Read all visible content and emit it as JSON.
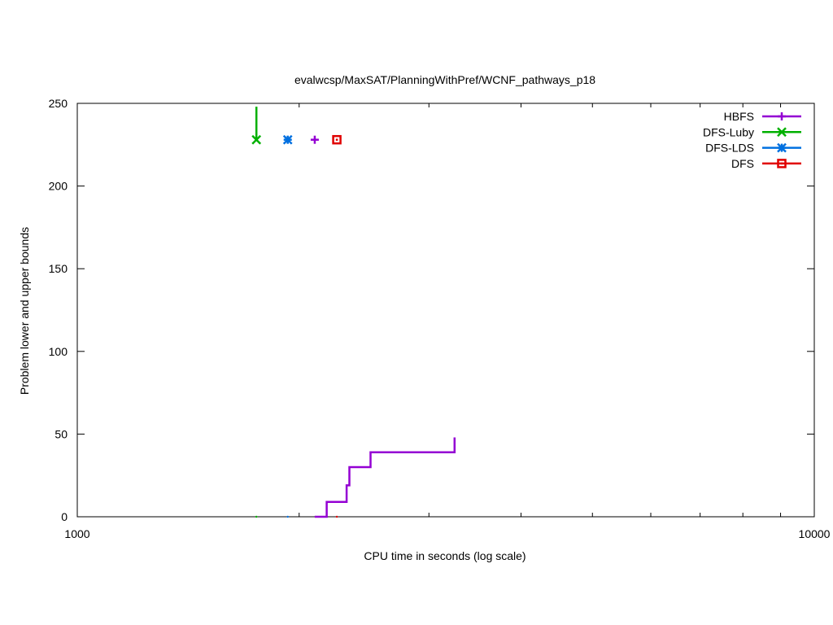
{
  "chart_data": {
    "type": "line",
    "title": "evalwcsp/MaxSAT/PlanningWithPref/WCNF_pathways_p18",
    "xlabel": "CPU time in seconds (log scale)",
    "ylabel": "Problem lower and upper bounds",
    "xscale": "log",
    "xlim": [
      1000,
      10000
    ],
    "ylim": [
      0,
      250
    ],
    "grid": false,
    "legend_position": "top-right",
    "x_ticks": [
      {
        "value": 1000,
        "label": "1000"
      },
      {
        "value": 10000,
        "label": "10000"
      }
    ],
    "x_minor_ticks": [
      2000,
      3000,
      4000,
      5000,
      6000,
      7000,
      8000,
      9000
    ],
    "y_ticks": [
      {
        "value": 0,
        "label": "0"
      },
      {
        "value": 50,
        "label": "50"
      },
      {
        "value": 100,
        "label": "100"
      },
      {
        "value": 150,
        "label": "150"
      },
      {
        "value": 200,
        "label": "200"
      },
      {
        "value": 250,
        "label": "250"
      }
    ],
    "series": [
      {
        "name": "HBFS",
        "color": "#9400d3",
        "marker": "plus",
        "lower_bound_steps": [
          [
            2100,
            0
          ],
          [
            2180,
            0
          ],
          [
            2180,
            9
          ],
          [
            2320,
            9
          ],
          [
            2320,
            19
          ],
          [
            2340,
            19
          ],
          [
            2340,
            30
          ],
          [
            2500,
            30
          ],
          [
            2500,
            39
          ],
          [
            3250,
            39
          ],
          [
            3250,
            48
          ]
        ],
        "upper_bound_points": [
          [
            2100,
            228
          ]
        ]
      },
      {
        "name": "DFS-Luby",
        "color": "#00b000",
        "marker": "x",
        "lower_bound_steps": [
          [
            1750,
            0
          ]
        ],
        "upper_bound_steps": [
          [
            1750,
            248
          ],
          [
            1750,
            228
          ]
        ],
        "upper_bound_points": [
          [
            1750,
            228
          ]
        ]
      },
      {
        "name": "DFS-LDS",
        "color": "#0070e0",
        "marker": "star",
        "lower_bound_steps": [
          [
            1930,
            0
          ]
        ],
        "upper_bound_points": [
          [
            1930,
            228
          ]
        ]
      },
      {
        "name": "DFS",
        "color": "#e00000",
        "marker": "box",
        "lower_bound_steps": [
          [
            2250,
            0
          ]
        ],
        "upper_bound_points": [
          [
            2250,
            228
          ]
        ]
      }
    ]
  }
}
